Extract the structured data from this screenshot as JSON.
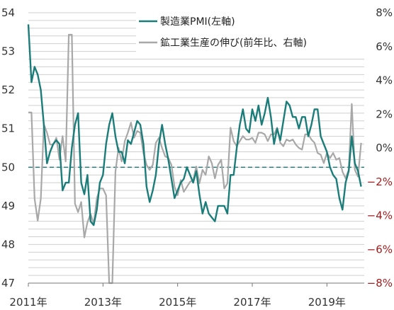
{
  "chart_data": {
    "type": "line",
    "x_ticks": [
      "2011年",
      "2013年",
      "2015年",
      "2017年",
      "2019年"
    ],
    "left_axis": {
      "ylim": [
        47,
        54
      ],
      "ticks": [
        "47",
        "48",
        "49",
        "50",
        "51",
        "52",
        "53",
        "54"
      ]
    },
    "right_axis": {
      "ylim": [
        -8,
        8
      ],
      "ticks": [
        "−8%",
        "−6%",
        "−4%",
        "−2%",
        "0%",
        "2%",
        "4%",
        "6%",
        "8%"
      ]
    },
    "reference_line": {
      "axis": "left",
      "value": 50
    },
    "grid": true,
    "legend_position": "top-right",
    "colors": {
      "pmi": "#1a7d7a",
      "growth": "#a8a8a8",
      "positive_tick": "#333333",
      "negative_tick": "#9e1b1b",
      "reference": "#1a7d7a"
    },
    "series": [
      {
        "name": "製造業PMI(左軸)",
        "axis": "left",
        "x": [
          "2011-01",
          "2011-02",
          "2011-03",
          "2011-04",
          "2011-05",
          "2011-06",
          "2011-07",
          "2011-08",
          "2011-09",
          "2011-10",
          "2011-11",
          "2011-12",
          "2012-01",
          "2012-02",
          "2012-03",
          "2012-04",
          "2012-05",
          "2012-06",
          "2012-07",
          "2012-08",
          "2012-09",
          "2012-10",
          "2012-11",
          "2012-12",
          "2013-01",
          "2013-02",
          "2013-03",
          "2013-04",
          "2013-05",
          "2013-06",
          "2013-07",
          "2013-08",
          "2013-09",
          "2013-10",
          "2013-11",
          "2013-12",
          "2014-01",
          "2014-02",
          "2014-03",
          "2014-04",
          "2014-05",
          "2014-06",
          "2014-07",
          "2014-08",
          "2014-09",
          "2014-10",
          "2014-11",
          "2014-12",
          "2015-01",
          "2015-02",
          "2015-03",
          "2015-04",
          "2015-05",
          "2015-06",
          "2015-07",
          "2015-08",
          "2015-09",
          "2015-10",
          "2015-11",
          "2015-12",
          "2016-01",
          "2016-02",
          "2016-03",
          "2016-04",
          "2016-05",
          "2016-06",
          "2016-07",
          "2016-08",
          "2016-09",
          "2016-10",
          "2016-11",
          "2016-12",
          "2017-01",
          "2017-02",
          "2017-03",
          "2017-04",
          "2017-05",
          "2017-06",
          "2017-07",
          "2017-08",
          "2017-09",
          "2017-10",
          "2017-11",
          "2017-12",
          "2018-01",
          "2018-02",
          "2018-03",
          "2018-04",
          "2018-05",
          "2018-06",
          "2018-07",
          "2018-08",
          "2018-09",
          "2018-10",
          "2018-11",
          "2018-12",
          "2019-01",
          "2019-02",
          "2019-03",
          "2019-04",
          "2019-05",
          "2019-06",
          "2019-07",
          "2019-08",
          "2019-09",
          "2019-10",
          "2019-11",
          "2019-12"
        ],
        "values": [
          53.7,
          52.2,
          52.6,
          52.4,
          52.0,
          51.1,
          50.1,
          50.4,
          50.6,
          50.7,
          50.6,
          49.4,
          49.6,
          49.6,
          50.5,
          51.1,
          51.4,
          49.6,
          49.3,
          49.8,
          48.6,
          48.5,
          48.9,
          49.6,
          49.8,
          50.6,
          51.1,
          51.4,
          50.8,
          50.4,
          50.4,
          50.1,
          50.7,
          50.6,
          50.9,
          51.2,
          51.1,
          50.6,
          49.5,
          49.1,
          49.4,
          49.8,
          50.6,
          51.1,
          50.6,
          50.2,
          49.7,
          49.2,
          49.4,
          49.6,
          49.7,
          50.0,
          49.8,
          49.6,
          49.9,
          49.3,
          48.8,
          49.1,
          48.8,
          48.7,
          48.6,
          49.0,
          49.0,
          49.0,
          48.8,
          49.8,
          49.8,
          50.5,
          51.1,
          51.5,
          51.0,
          50.9,
          51.5,
          51.2,
          51.6,
          51.1,
          51.4,
          51.8,
          51.3,
          50.6,
          51.0,
          50.7,
          51.2,
          51.7,
          51.6,
          51.3,
          51.3,
          51.0,
          51.3,
          51.3,
          50.8,
          51.1,
          51.5,
          51.5,
          50.8,
          50.6,
          50.4,
          50.0,
          49.8,
          49.7,
          49.2,
          48.9,
          49.6,
          49.9,
          50.8,
          50.1,
          49.9,
          49.5
        ]
      },
      {
        "name": "鉱工業生産の伸び(前年比、右軸)",
        "axis": "right",
        "x": [
          "2011-01",
          "2011-02",
          "2011-03",
          "2011-04",
          "2011-05",
          "2011-06",
          "2011-07",
          "2011-08",
          "2011-09",
          "2011-10",
          "2011-11",
          "2011-12",
          "2012-01",
          "2012-02",
          "2012-03",
          "2012-04",
          "2012-05",
          "2012-06",
          "2012-07",
          "2012-08",
          "2012-09",
          "2012-10",
          "2012-11",
          "2012-12",
          "2013-01",
          "2013-02",
          "2013-03",
          "2013-04",
          "2013-05",
          "2013-06",
          "2013-07",
          "2013-08",
          "2013-09",
          "2013-10",
          "2013-11",
          "2013-12",
          "2014-01",
          "2014-02",
          "2014-03",
          "2014-04",
          "2014-05",
          "2014-06",
          "2014-07",
          "2014-08",
          "2014-09",
          "2014-10",
          "2014-11",
          "2014-12",
          "2015-01",
          "2015-02",
          "2015-03",
          "2015-04",
          "2015-05",
          "2015-06",
          "2015-07",
          "2015-08",
          "2015-09",
          "2015-10",
          "2015-11",
          "2015-12",
          "2016-01",
          "2016-02",
          "2016-03",
          "2016-04",
          "2016-05",
          "2016-06",
          "2016-07",
          "2016-08",
          "2016-09",
          "2016-10",
          "2016-11",
          "2016-12",
          "2017-01",
          "2017-02",
          "2017-03",
          "2017-04",
          "2017-05",
          "2017-06",
          "2017-07",
          "2017-08",
          "2017-09",
          "2017-10",
          "2017-11",
          "2017-12",
          "2018-01",
          "2018-02",
          "2018-03",
          "2018-04",
          "2018-05",
          "2018-06",
          "2018-07",
          "2018-08",
          "2018-09",
          "2018-10",
          "2018-11",
          "2018-12",
          "2019-01",
          "2019-02",
          "2019-03",
          "2019-04",
          "2019-05",
          "2019-06",
          "2019-07",
          "2019-08",
          "2019-09",
          "2019-10",
          "2019-11",
          "2019-12"
        ],
        "values": [
          2.1,
          2.1,
          -3.0,
          -4.3,
          -3.0,
          1.4,
          0.9,
          0.2,
          0.2,
          0.6,
          -0.7,
          0.7,
          -0.8,
          6.7,
          6.7,
          -3.3,
          -3.8,
          -3.2,
          -5.3,
          -4.4,
          -3.9,
          -4.5,
          -3.0,
          -2.4,
          -2.4,
          -2.8,
          -8.0,
          -8.0,
          -1.4,
          0.0,
          -0.8,
          0.4,
          0.9,
          1.5,
          0.6,
          1.0,
          0.9,
          -0.3,
          -1.0,
          -1.3,
          -1.0,
          0.3,
          0.6,
          0.0,
          -0.5,
          -0.6,
          -1.0,
          -2.3,
          -2.8,
          -1.9,
          -2.6,
          -2.3,
          -2.0,
          -1.9,
          -1.1,
          -2.1,
          -1.3,
          -1.6,
          -0.5,
          -0.9,
          -1.8,
          -1.0,
          -0.7,
          -2.4,
          -2.1,
          1.2,
          0.4,
          0.1,
          0.4,
          0.7,
          0.5,
          0.5,
          0.6,
          0.3,
          0.9,
          0.9,
          0.8,
          0.4,
          0.8,
          0.8,
          1.2,
          0.3,
          0.1,
          0.5,
          0.4,
          0.5,
          0.2,
          0.0,
          -0.1,
          0.8,
          0.8,
          0.5,
          0.3,
          -0.3,
          -0.4,
          -0.9,
          -0.3,
          -0.6,
          -0.3,
          -0.7,
          -0.6,
          -1.4,
          -1.8,
          -1.3,
          2.6,
          -1.3,
          -1.7,
          0.3
        ]
      }
    ]
  }
}
